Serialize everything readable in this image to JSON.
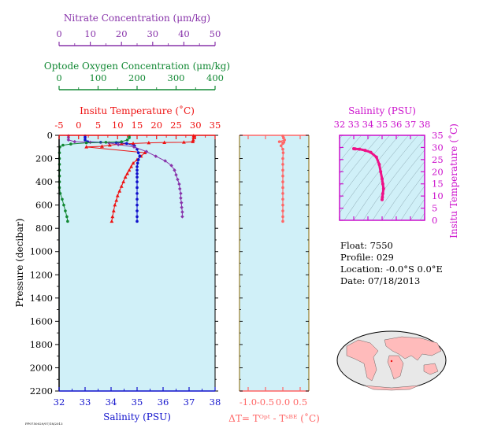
{
  "colors": {
    "panel_bg": "#d0f0f8",
    "nitrate": "#8833aa",
    "oxygen": "#118833",
    "temperature": "#ee1111",
    "salinity": "#1111cc",
    "delta_t": "#ff6666",
    "ts_axes": "#cc11cc",
    "ts_line": "#ee1188",
    "map_land": "#ffbbbb",
    "map_ocean": "#e8e8e8"
  },
  "info": {
    "float": "Float:  7550",
    "profile": "Profile:  029",
    "location": "Location:  -0.0°S   0.0°E",
    "date": "Date:  07/18/2013"
  },
  "footer": "PP0750029/07/18/2013",
  "chart_data": [
    {
      "type": "scatter",
      "name": "main-profile",
      "ylabel": "Pressure (decibar)",
      "ylim": [
        2200,
        0
      ],
      "yticks": [
        0,
        200,
        400,
        600,
        800,
        1000,
        1200,
        1400,
        1600,
        1800,
        2000,
        2200
      ],
      "axes": {
        "nitrate": {
          "label": "Nitrate Concentration (μm/kg)",
          "range": [
            0,
            50
          ],
          "ticks": [
            0,
            10,
            20,
            30,
            40,
            50
          ]
        },
        "oxygen": {
          "label": "Optode Oxygen Concentration (μm/kg)",
          "range": [
            0,
            400
          ],
          "ticks": [
            0,
            100,
            200,
            300,
            400
          ]
        },
        "temperature": {
          "label": "Insitu Temperature (˚C)",
          "range": [
            -5,
            35
          ],
          "ticks": [
            -5,
            0,
            5,
            10,
            15,
            20,
            25,
            30,
            35
          ]
        },
        "salinity": {
          "label": "Salinity (PSU)",
          "range": [
            32,
            38
          ],
          "ticks": [
            32,
            33,
            34,
            35,
            36,
            37,
            38
          ]
        }
      },
      "series": [
        {
          "key": "temperature",
          "marker": "triangle",
          "points": [
            [
              29.5,
              5
            ],
            [
              29.5,
              20
            ],
            [
              29.4,
              40
            ],
            [
              29.3,
              55
            ],
            [
              27,
              60
            ],
            [
              22,
              62
            ],
            [
              18,
              65
            ],
            [
              14,
              70
            ],
            [
              11,
              75
            ],
            [
              8,
              85
            ],
            [
              6,
              95
            ],
            [
              2,
              100
            ],
            [
              17,
              150
            ],
            [
              16,
              180
            ],
            [
              15,
              210
            ],
            [
              14,
              240
            ],
            [
              13.5,
              270
            ],
            [
              13,
              300
            ],
            [
              12.5,
              330
            ],
            [
              12,
              360
            ],
            [
              11.5,
              400
            ],
            [
              11,
              440
            ],
            [
              10.5,
              480
            ],
            [
              10,
              520
            ],
            [
              9.7,
              560
            ],
            [
              9.3,
              600
            ],
            [
              9,
              650
            ],
            [
              8.7,
              700
            ],
            [
              8.5,
              740
            ]
          ]
        },
        {
          "key": "salinity",
          "marker": "dot",
          "points": [
            [
              33.0,
              5
            ],
            [
              33.0,
              20
            ],
            [
              33.0,
              40
            ],
            [
              33.1,
              55
            ],
            [
              33.6,
              60
            ],
            [
              34.2,
              62
            ],
            [
              34.6,
              70
            ],
            [
              34.9,
              90
            ],
            [
              35.0,
              120
            ],
            [
              35.05,
              150
            ],
            [
              35.1,
              180
            ],
            [
              35.05,
              210
            ],
            [
              35.02,
              240
            ],
            [
              35.0,
              270
            ],
            [
              35.0,
              300
            ],
            [
              35.0,
              330
            ],
            [
              35.0,
              360
            ],
            [
              35.0,
              400
            ],
            [
              35.0,
              450
            ],
            [
              35.0,
              500
            ],
            [
              35.0,
              550
            ],
            [
              35.0,
              600
            ],
            [
              35.0,
              650
            ],
            [
              35.0,
              700
            ],
            [
              35.0,
              740
            ]
          ]
        },
        {
          "key": "nitrate",
          "marker": "star",
          "points": [
            [
              3,
              5
            ],
            [
              3,
              20
            ],
            [
              3,
              40
            ],
            [
              5,
              55
            ],
            [
              10,
              60
            ],
            [
              16,
              65
            ],
            [
              19,
              80
            ],
            [
              24,
              100
            ],
            [
              28,
              140
            ],
            [
              31,
              180
            ],
            [
              34,
              220
            ],
            [
              36,
              260
            ],
            [
              37,
              300
            ],
            [
              37.5,
              340
            ],
            [
              38,
              380
            ],
            [
              38.5,
              420
            ],
            [
              38.7,
              460
            ],
            [
              39,
              500
            ],
            [
              39,
              540
            ],
            [
              39.2,
              580
            ],
            [
              39.3,
              620
            ],
            [
              39.5,
              660
            ],
            [
              39.5,
              700
            ]
          ]
        },
        {
          "key": "oxygen",
          "marker": "dot",
          "points": [
            [
              180,
              5
            ],
            [
              180,
              20
            ],
            [
              175,
              40
            ],
            [
              160,
              55
            ],
            [
              120,
              60
            ],
            [
              70,
              65
            ],
            [
              30,
              75
            ],
            [
              10,
              85
            ],
            [
              2,
              100
            ],
            [
              1,
              150
            ],
            [
              1,
              200
            ],
            [
              1,
              250
            ],
            [
              1,
              300
            ],
            [
              1,
              350
            ],
            [
              1,
              400
            ],
            [
              1,
              450
            ],
            [
              3,
              500
            ],
            [
              8,
              550
            ],
            [
              12,
              600
            ],
            [
              16,
              650
            ],
            [
              20,
              700
            ],
            [
              22,
              740
            ]
          ]
        }
      ]
    },
    {
      "type": "scatter",
      "name": "delta-t",
      "xlabel": "ΔT= Tᴼᵖᵗ - Tˢᴮᴱ (˚C)",
      "xlim": [
        -1.25,
        0.75
      ],
      "xticks": [
        -1.0,
        -0.5,
        0.0,
        0.5
      ],
      "ylim": [
        2200,
        0
      ],
      "points": [
        [
          0.0,
          5
        ],
        [
          0.02,
          20
        ],
        [
          0.05,
          40
        ],
        [
          -0.1,
          55
        ],
        [
          0.03,
          60
        ],
        [
          0.0,
          70
        ],
        [
          -0.05,
          90
        ],
        [
          0.0,
          120
        ],
        [
          0.01,
          150
        ],
        [
          0.0,
          200
        ],
        [
          0.0,
          250
        ],
        [
          0.0,
          300
        ],
        [
          0.0,
          350
        ],
        [
          0.0,
          400
        ],
        [
          0.0,
          450
        ],
        [
          0.0,
          500
        ],
        [
          0.0,
          550
        ],
        [
          0.0,
          600
        ],
        [
          0.0,
          650
        ],
        [
          0.0,
          700
        ],
        [
          0.0,
          740
        ]
      ]
    },
    {
      "type": "line",
      "name": "ts-diagram",
      "xlabel": "Salinity (PSU)",
      "ylabel": "Insitu Temperature (˚C)",
      "xlim": [
        32,
        38
      ],
      "xticks": [
        32,
        33,
        34,
        35,
        36,
        37,
        38
      ],
      "ylim": [
        0,
        35
      ],
      "yticks": [
        0,
        5,
        10,
        15,
        20,
        25,
        30,
        35
      ],
      "points": [
        [
          33.0,
          29.5
        ],
        [
          33.1,
          29.4
        ],
        [
          33.4,
          29.3
        ],
        [
          33.8,
          28.8
        ],
        [
          34.2,
          28.0
        ],
        [
          34.6,
          26
        ],
        [
          34.8,
          23
        ],
        [
          34.9,
          20
        ],
        [
          35.0,
          17
        ],
        [
          35.05,
          15
        ],
        [
          35.1,
          13
        ],
        [
          35.05,
          11
        ],
        [
          35.02,
          9.5
        ],
        [
          35.0,
          8.5
        ]
      ]
    }
  ]
}
